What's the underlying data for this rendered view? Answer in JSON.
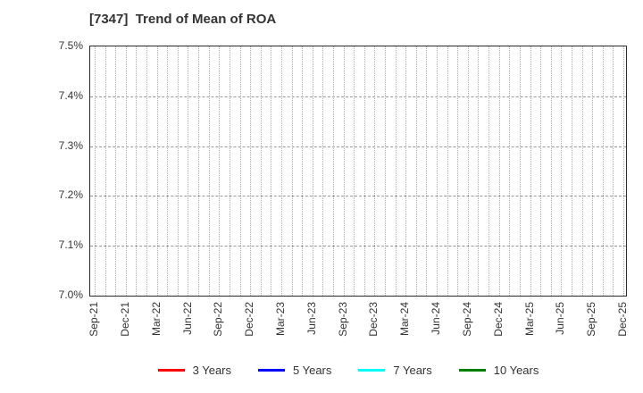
{
  "page": {
    "background": "#ffffff"
  },
  "chart_data": {
    "type": "line",
    "title": "[7347]  Trend of Mean of ROA",
    "x_tick_labels": [
      "Sep-21",
      "Dec-21",
      "Mar-22",
      "Jun-22",
      "Sep-22",
      "Dec-22",
      "Mar-23",
      "Jun-23",
      "Sep-23",
      "Dec-23",
      "Mar-24",
      "Jun-24",
      "Sep-24",
      "Dec-24",
      "Mar-25",
      "Jun-25",
      "Sep-25",
      "Dec-25"
    ],
    "x_minor_gridlines_per_interval": 3,
    "y_ticks": [
      {
        "value": 7.0,
        "label": "7.0%"
      },
      {
        "value": 7.1,
        "label": "7.1%"
      },
      {
        "value": 7.2,
        "label": "7.2%"
      },
      {
        "value": 7.3,
        "label": "7.3%"
      },
      {
        "value": 7.4,
        "label": "7.4%"
      },
      {
        "value": 7.5,
        "label": "7.5%"
      }
    ],
    "ylim": [
      7.0,
      7.5
    ],
    "grid": "on",
    "legend_position": "bottom",
    "series": [
      {
        "name": "3 Years",
        "color": "#ff0000",
        "values": []
      },
      {
        "name": "5 Years",
        "color": "#0000ff",
        "values": []
      },
      {
        "name": "7 Years",
        "color": "#00ffff",
        "values": []
      },
      {
        "name": "10 Years",
        "color": "#008000",
        "values": []
      }
    ]
  },
  "colors": {
    "axis_border": "#2b2b2b",
    "gridline_vertical": "#aaaaaa",
    "gridline_horizontal": "#999999",
    "text": "#333333"
  }
}
